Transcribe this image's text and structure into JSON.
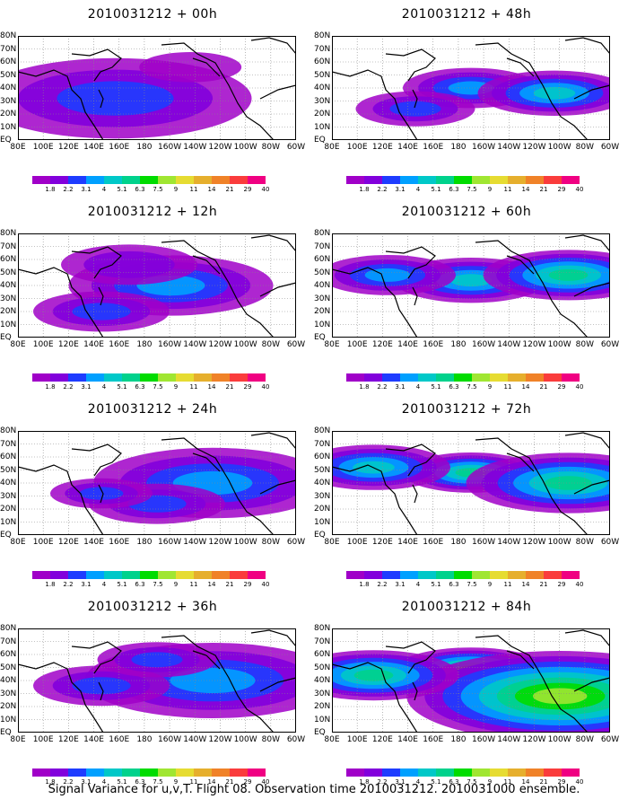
{
  "footer": "Signal Variance for u,v,T. Flight 08. Observation time 2010031212. 2010031000 ensemble.",
  "lat_labels": [
    "80N",
    "70N",
    "60N",
    "50N",
    "40N",
    "30N",
    "20N",
    "10N",
    "EQ"
  ],
  "lon_labels": [
    "80E",
    "100E",
    "120E",
    "140E",
    "160E",
    "180",
    "160W",
    "140W",
    "120W",
    "100W",
    "80W",
    "60W"
  ],
  "colorbar": {
    "labels": [
      "1.8",
      "2.2",
      "3.1",
      "4",
      "5.1",
      "6.3",
      "7.5",
      "9",
      "11",
      "14",
      "21",
      "29",
      "40"
    ],
    "colors": [
      "#a000c8",
      "#8200dc",
      "#1e3cff",
      "#00a0ff",
      "#00c8c8",
      "#00d28c",
      "#00dc00",
      "#a0e632",
      "#e6dc32",
      "#e6af2d",
      "#f08228",
      "#fa3c3c",
      "#f00082"
    ]
  },
  "panels": [
    {
      "title": "2010031212 + 00h",
      "field": [
        [
          0.35,
          0.6,
          2,
          1.6
        ],
        [
          0.62,
          0.3,
          0.8,
          0.6
        ]
      ]
    },
    {
      "title": "2010031212 + 48h",
      "field": [
        [
          0.5,
          0.5,
          3,
          0.8
        ],
        [
          0.8,
          0.55,
          4,
          0.9
        ],
        [
          0.3,
          0.7,
          2,
          0.7
        ]
      ]
    },
    {
      "title": "2010031212 + 12h",
      "field": [
        [
          0.55,
          0.5,
          3,
          1.2
        ],
        [
          0.4,
          0.3,
          1.5,
          0.8
        ],
        [
          0.3,
          0.75,
          2,
          0.8
        ]
      ]
    },
    {
      "title": "2010031212 + 60h",
      "field": [
        [
          0.5,
          0.45,
          4,
          0.9
        ],
        [
          0.85,
          0.4,
          5,
          1
        ],
        [
          0.2,
          0.4,
          3,
          0.8
        ]
      ]
    },
    {
      "title": "2010031212 + 24h",
      "field": [
        [
          0.7,
          0.5,
          3,
          1.4
        ],
        [
          0.5,
          0.7,
          2,
          0.8
        ],
        [
          0.3,
          0.6,
          2,
          0.6
        ]
      ]
    },
    {
      "title": "2010031212 + 72h",
      "field": [
        [
          0.5,
          0.4,
          5,
          0.8
        ],
        [
          0.85,
          0.5,
          5,
          1.2
        ],
        [
          0.15,
          0.35,
          4,
          0.9
        ]
      ]
    },
    {
      "title": "2010031212 + 36h",
      "field": [
        [
          0.7,
          0.5,
          3,
          1.5
        ],
        [
          0.3,
          0.55,
          2,
          0.8
        ],
        [
          0.5,
          0.3,
          2,
          0.7
        ]
      ]
    },
    {
      "title": "2010031212 + 84h",
      "field": [
        [
          0.5,
          0.4,
          6,
          0.9
        ],
        [
          0.82,
          0.65,
          7,
          1.8
        ],
        [
          0.15,
          0.45,
          5,
          1
        ]
      ]
    }
  ]
}
